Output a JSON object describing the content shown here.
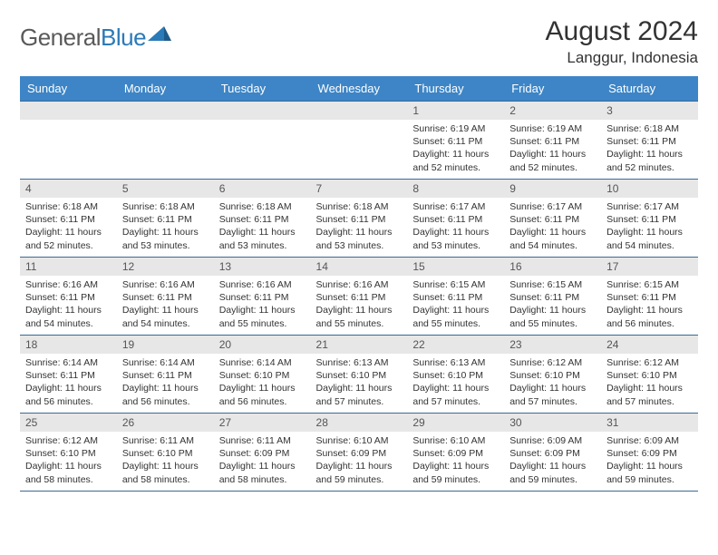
{
  "brand": {
    "part1": "General",
    "part2": "Blue"
  },
  "title": "August 2024",
  "location": "Langgur, Indonesia",
  "colors": {
    "header_bg": "#3d85c6",
    "header_text": "#ffffff",
    "daynum_bg": "#e7e7e7",
    "cell_border": "#3d6a94",
    "logo_gray": "#5a5a5a",
    "logo_blue": "#2a7ab8"
  },
  "weekdays": [
    "Sunday",
    "Monday",
    "Tuesday",
    "Wednesday",
    "Thursday",
    "Friday",
    "Saturday"
  ],
  "weeks": [
    [
      null,
      null,
      null,
      null,
      {
        "n": "1",
        "sr": "Sunrise: 6:19 AM",
        "ss": "Sunset: 6:11 PM",
        "dl": "Daylight: 11 hours and 52 minutes."
      },
      {
        "n": "2",
        "sr": "Sunrise: 6:19 AM",
        "ss": "Sunset: 6:11 PM",
        "dl": "Daylight: 11 hours and 52 minutes."
      },
      {
        "n": "3",
        "sr": "Sunrise: 6:18 AM",
        "ss": "Sunset: 6:11 PM",
        "dl": "Daylight: 11 hours and 52 minutes."
      }
    ],
    [
      {
        "n": "4",
        "sr": "Sunrise: 6:18 AM",
        "ss": "Sunset: 6:11 PM",
        "dl": "Daylight: 11 hours and 52 minutes."
      },
      {
        "n": "5",
        "sr": "Sunrise: 6:18 AM",
        "ss": "Sunset: 6:11 PM",
        "dl": "Daylight: 11 hours and 53 minutes."
      },
      {
        "n": "6",
        "sr": "Sunrise: 6:18 AM",
        "ss": "Sunset: 6:11 PM",
        "dl": "Daylight: 11 hours and 53 minutes."
      },
      {
        "n": "7",
        "sr": "Sunrise: 6:18 AM",
        "ss": "Sunset: 6:11 PM",
        "dl": "Daylight: 11 hours and 53 minutes."
      },
      {
        "n": "8",
        "sr": "Sunrise: 6:17 AM",
        "ss": "Sunset: 6:11 PM",
        "dl": "Daylight: 11 hours and 53 minutes."
      },
      {
        "n": "9",
        "sr": "Sunrise: 6:17 AM",
        "ss": "Sunset: 6:11 PM",
        "dl": "Daylight: 11 hours and 54 minutes."
      },
      {
        "n": "10",
        "sr": "Sunrise: 6:17 AM",
        "ss": "Sunset: 6:11 PM",
        "dl": "Daylight: 11 hours and 54 minutes."
      }
    ],
    [
      {
        "n": "11",
        "sr": "Sunrise: 6:16 AM",
        "ss": "Sunset: 6:11 PM",
        "dl": "Daylight: 11 hours and 54 minutes."
      },
      {
        "n": "12",
        "sr": "Sunrise: 6:16 AM",
        "ss": "Sunset: 6:11 PM",
        "dl": "Daylight: 11 hours and 54 minutes."
      },
      {
        "n": "13",
        "sr": "Sunrise: 6:16 AM",
        "ss": "Sunset: 6:11 PM",
        "dl": "Daylight: 11 hours and 55 minutes."
      },
      {
        "n": "14",
        "sr": "Sunrise: 6:16 AM",
        "ss": "Sunset: 6:11 PM",
        "dl": "Daylight: 11 hours and 55 minutes."
      },
      {
        "n": "15",
        "sr": "Sunrise: 6:15 AM",
        "ss": "Sunset: 6:11 PM",
        "dl": "Daylight: 11 hours and 55 minutes."
      },
      {
        "n": "16",
        "sr": "Sunrise: 6:15 AM",
        "ss": "Sunset: 6:11 PM",
        "dl": "Daylight: 11 hours and 55 minutes."
      },
      {
        "n": "17",
        "sr": "Sunrise: 6:15 AM",
        "ss": "Sunset: 6:11 PM",
        "dl": "Daylight: 11 hours and 56 minutes."
      }
    ],
    [
      {
        "n": "18",
        "sr": "Sunrise: 6:14 AM",
        "ss": "Sunset: 6:11 PM",
        "dl": "Daylight: 11 hours and 56 minutes."
      },
      {
        "n": "19",
        "sr": "Sunrise: 6:14 AM",
        "ss": "Sunset: 6:11 PM",
        "dl": "Daylight: 11 hours and 56 minutes."
      },
      {
        "n": "20",
        "sr": "Sunrise: 6:14 AM",
        "ss": "Sunset: 6:10 PM",
        "dl": "Daylight: 11 hours and 56 minutes."
      },
      {
        "n": "21",
        "sr": "Sunrise: 6:13 AM",
        "ss": "Sunset: 6:10 PM",
        "dl": "Daylight: 11 hours and 57 minutes."
      },
      {
        "n": "22",
        "sr": "Sunrise: 6:13 AM",
        "ss": "Sunset: 6:10 PM",
        "dl": "Daylight: 11 hours and 57 minutes."
      },
      {
        "n": "23",
        "sr": "Sunrise: 6:12 AM",
        "ss": "Sunset: 6:10 PM",
        "dl": "Daylight: 11 hours and 57 minutes."
      },
      {
        "n": "24",
        "sr": "Sunrise: 6:12 AM",
        "ss": "Sunset: 6:10 PM",
        "dl": "Daylight: 11 hours and 57 minutes."
      }
    ],
    [
      {
        "n": "25",
        "sr": "Sunrise: 6:12 AM",
        "ss": "Sunset: 6:10 PM",
        "dl": "Daylight: 11 hours and 58 minutes."
      },
      {
        "n": "26",
        "sr": "Sunrise: 6:11 AM",
        "ss": "Sunset: 6:10 PM",
        "dl": "Daylight: 11 hours and 58 minutes."
      },
      {
        "n": "27",
        "sr": "Sunrise: 6:11 AM",
        "ss": "Sunset: 6:09 PM",
        "dl": "Daylight: 11 hours and 58 minutes."
      },
      {
        "n": "28",
        "sr": "Sunrise: 6:10 AM",
        "ss": "Sunset: 6:09 PM",
        "dl": "Daylight: 11 hours and 59 minutes."
      },
      {
        "n": "29",
        "sr": "Sunrise: 6:10 AM",
        "ss": "Sunset: 6:09 PM",
        "dl": "Daylight: 11 hours and 59 minutes."
      },
      {
        "n": "30",
        "sr": "Sunrise: 6:09 AM",
        "ss": "Sunset: 6:09 PM",
        "dl": "Daylight: 11 hours and 59 minutes."
      },
      {
        "n": "31",
        "sr": "Sunrise: 6:09 AM",
        "ss": "Sunset: 6:09 PM",
        "dl": "Daylight: 11 hours and 59 minutes."
      }
    ]
  ]
}
